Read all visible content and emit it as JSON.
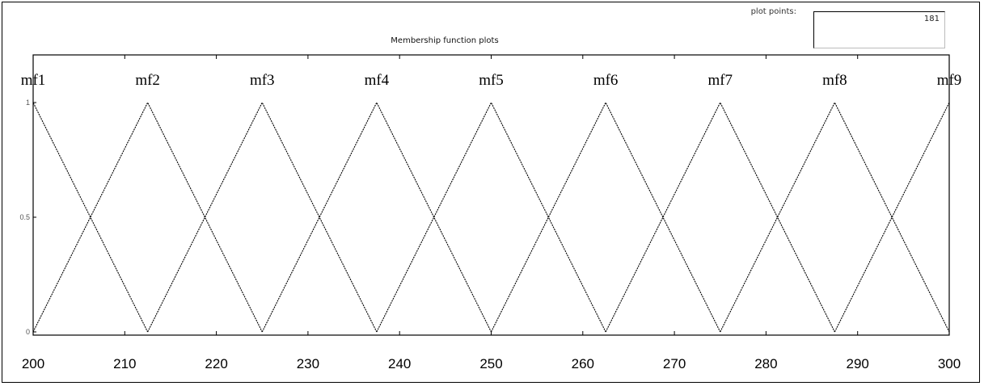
{
  "plot_points": {
    "label": "plot points:",
    "value": "181"
  },
  "chart_data": {
    "type": "line",
    "title": "Membership function plots",
    "xlabel": "",
    "ylabel": "",
    "xlim": [
      200,
      300
    ],
    "ylim": [
      0,
      1
    ],
    "xticks": [
      200,
      210,
      220,
      230,
      240,
      250,
      260,
      270,
      280,
      290,
      300
    ],
    "yticks": [
      0,
      0.5,
      1
    ],
    "ytick_labels": [
      "0",
      "0.5",
      "1"
    ],
    "grid": false,
    "series": [
      {
        "name": "mf1",
        "x": [
          187.5,
          200,
          212.5
        ],
        "y": [
          0,
          1,
          0
        ]
      },
      {
        "name": "mf2",
        "x": [
          200,
          212.5,
          225
        ],
        "y": [
          0,
          1,
          0
        ]
      },
      {
        "name": "mf3",
        "x": [
          212.5,
          225,
          237.5
        ],
        "y": [
          0,
          1,
          0
        ]
      },
      {
        "name": "mf4",
        "x": [
          225,
          237.5,
          250
        ],
        "y": [
          0,
          1,
          0
        ]
      },
      {
        "name": "mf5",
        "x": [
          237.5,
          250,
          262.5
        ],
        "y": [
          0,
          1,
          0
        ]
      },
      {
        "name": "mf6",
        "x": [
          250,
          262.5,
          275
        ],
        "y": [
          0,
          1,
          0
        ]
      },
      {
        "name": "mf7",
        "x": [
          262.5,
          275,
          287.5
        ],
        "y": [
          0,
          1,
          0
        ]
      },
      {
        "name": "mf8",
        "x": [
          275,
          287.5,
          300
        ],
        "y": [
          0,
          1,
          0
        ]
      },
      {
        "name": "mf9",
        "x": [
          287.5,
          300,
          312.5
        ],
        "y": [
          0,
          1,
          0
        ]
      }
    ]
  }
}
